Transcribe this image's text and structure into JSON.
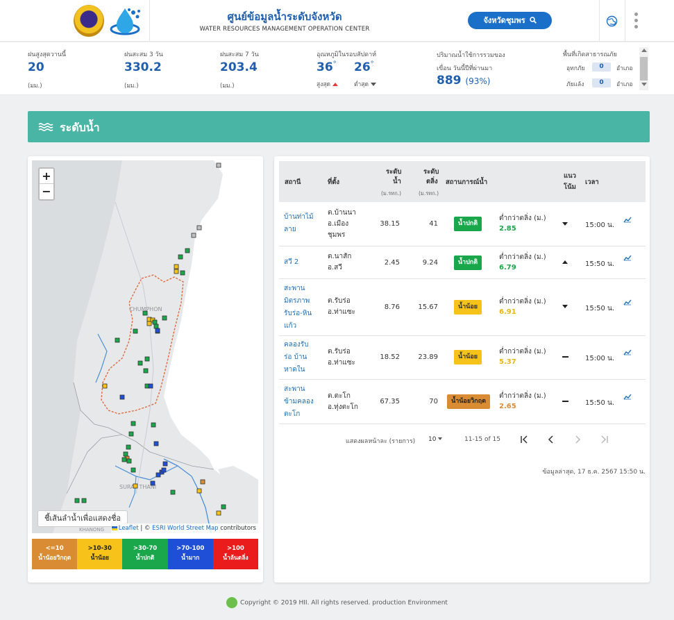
{
  "header": {
    "title": "ศูนย์ข้อมูลน้ำระดับจังหวัด",
    "subtitle": "WATER RESOURCES MANAGEMENT OPERATION CENTER",
    "province_button": "จังหวัดชุมพร",
    "icons": [
      "province-seal-logo",
      "water-drop-logo",
      "search-icon",
      "globe-icon",
      "more-dots-icon"
    ]
  },
  "stats": {
    "rain_today": {
      "label": "ฝนสูงสุดวานนี้",
      "value": "20",
      "unit": "(มม.)"
    },
    "rain_3d": {
      "label": "ฝนสะสม 3 วัน",
      "value": "330.2",
      "unit": "(มม.)"
    },
    "rain_7d": {
      "label": "ฝนสะสม 7 วัน",
      "value": "203.4",
      "unit": "(มม.)"
    },
    "temp": {
      "label": "อุณหภูมิในรอบสัปดาห์",
      "max": "36",
      "min": "26",
      "deg": "°",
      "max_label": "สูงสุด",
      "min_label": "ต่ำสุด"
    },
    "dam": {
      "label1": "ปริมาณน้ำใช้การรวมของ",
      "label2": "เขื่อน วันนี้ปีที่ผ่านมา",
      "value": "889",
      "pct": "(93%)"
    },
    "disaster": {
      "label": "พื้นที่เกิดสาธารณภัย",
      "flood_label": "อุทกภัย",
      "flood_value": "0",
      "drought_label": "ภัยแล้ง",
      "drought_value": "0",
      "unit": "อำเภอ"
    }
  },
  "section": {
    "title": "ระดับน้ำ",
    "icon": "water-wave-icon"
  },
  "map": {
    "zoom_in": "+",
    "zoom_out": "−",
    "tip": "ชี้เส้นลำน้ำเพื่อแสดงชื่อ",
    "attribution_leaflet": "Leaflet",
    "attribution_sep": " | © ",
    "attribution_esri": "ESRI World Street Map",
    "attribution_tail": " contributors",
    "place_labels": [
      "CHUMPHON",
      "SURAT THANI",
      "KHANONG"
    ],
    "legend": [
      {
        "range": "<=10",
        "label": "น้ำน้อยวิกฤต",
        "color": "#d98c33"
      },
      {
        "range": ">10-30",
        "label": "น้ำน้อย",
        "color": "#f7c21a"
      },
      {
        "range": ">30-70",
        "label": "น้ำปกติ",
        "color": "#1aa64a"
      },
      {
        "range": ">70-100",
        "label": "น้ำมาก",
        "color": "#1e4fd6"
      },
      {
        "range": ">100",
        "label": "น้ำล้นตลิ่ง",
        "color": "#ea1c1c"
      }
    ]
  },
  "table": {
    "headers": {
      "station": "สถานี",
      "location": "ที่ตั้ง",
      "level1": "ระดับ",
      "level2": "น้ำ",
      "level_unit": "(ม.รทก.)",
      "bank1": "ระดับ",
      "bank2": "ตลิ่ง",
      "bank_unit": "(ม.รทก.)",
      "status": "สถานการณ์น้ำ",
      "trend1": "แนว",
      "trend2": "โน้ม",
      "time": "เวลา"
    },
    "rows": [
      {
        "station": [
          "บ้านท่าไม้",
          "ลาย"
        ],
        "location": [
          "ต.บ้านนา",
          "อ.เมือง",
          "ชุมพร"
        ],
        "level": "38.15",
        "bank": "41",
        "status": "น้ำปกติ",
        "status_color": "#1aa64a",
        "status_text_color": "#ffffff",
        "diff_label": "ต่ำกว่าตลิ่ง (ม.)",
        "diff": "2.85",
        "diff_color": "#1aa64a",
        "trend": "down",
        "time": "15:00 น."
      },
      {
        "station": [
          "สวี 2"
        ],
        "location": [
          "ต.นาสัก",
          "อ.สวี"
        ],
        "level": "2.45",
        "bank": "9.24",
        "status": "น้ำปกติ",
        "status_color": "#1aa64a",
        "status_text_color": "#ffffff",
        "diff_label": "ต่ำกว่าตลิ่ง (ม.)",
        "diff": "6.79",
        "diff_color": "#1aa64a",
        "trend": "up",
        "time": "15:50 น."
      },
      {
        "station": [
          "สะพาน",
          "มิตรภาพ",
          "รับร่อ-หิน",
          "แก้ว"
        ],
        "location": [
          "ต.รับร่อ",
          "อ.ท่าแซะ"
        ],
        "level": "8.76",
        "bank": "15.67",
        "status": "น้ำน้อย",
        "status_color": "#f7c21a",
        "status_text_color": "#333333",
        "diff_label": "ต่ำกว่าตลิ่ง (ม.)",
        "diff": "6.91",
        "diff_color": "#e8b710",
        "trend": "down",
        "time": "15:50 น."
      },
      {
        "station": [
          "คลองรับ",
          "ร่อ บ้าน",
          "หาดใน"
        ],
        "location": [
          "ต.รับร่อ",
          "อ.ท่าแซะ"
        ],
        "level": "18.52",
        "bank": "23.89",
        "status": "น้ำน้อย",
        "status_color": "#f7c21a",
        "status_text_color": "#333333",
        "diff_label": "ต่ำกว่าตลิ่ง (ม.)",
        "diff": "5.37",
        "diff_color": "#e8b710",
        "trend": "flat",
        "time": "15:00 น."
      },
      {
        "station": [
          "สะพาน",
          "ข้ามคลอง",
          "ตะโก"
        ],
        "location": [
          "ต.ตะโก",
          "อ.ทุ่งตะโก"
        ],
        "level": "67.35",
        "bank": "70",
        "status": "น้ำน้อยวิกฤต",
        "status_color": "#d98c33",
        "status_text_color": "#222222",
        "diff_label": "ต่ำกว่าตลิ่ง (ม.)",
        "diff": "2.65",
        "diff_color": "#d98c33",
        "trend": "flat",
        "time": "15:50 น."
      }
    ],
    "pager": {
      "per_page_label": "แสดงผลหน้าละ (รายการ)",
      "per_page": "10",
      "range": "11-15 of 15"
    },
    "updated": "ข้อมูลล่าสุด, 17 ธ.ค. 2567 15:50 น."
  },
  "footer": {
    "text": "Copyright © 2019 HII. All rights reserved. production Environment"
  }
}
